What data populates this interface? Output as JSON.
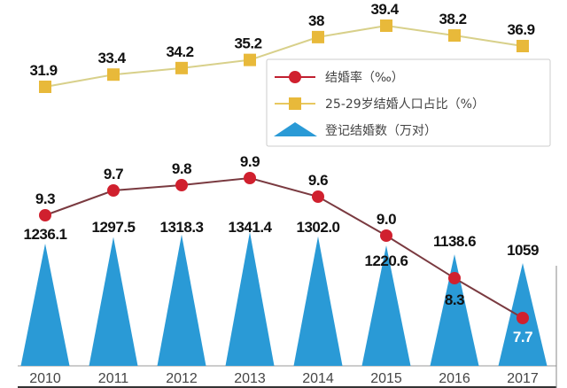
{
  "chart_data": {
    "type": "combo",
    "title": "",
    "categories": [
      "2010",
      "2011",
      "2012",
      "2013",
      "2014",
      "2015",
      "2016",
      "2017"
    ],
    "series": [
      {
        "name": "结婚率（‰）",
        "type": "line",
        "marker": "circle",
        "color": "#d0202e",
        "line_color": "#7a3a40",
        "values": [
          9.3,
          9.7,
          9.8,
          9.9,
          9.6,
          9.0,
          8.3,
          7.7
        ],
        "labels": [
          "9.3",
          "9.7",
          "9.8",
          "9.9",
          "9.6",
          "9.0",
          "8.3",
          "7.7"
        ]
      },
      {
        "name": "25-29岁结婚人口占比（%）",
        "type": "line",
        "marker": "square",
        "color": "#e8b93a",
        "line_color": "#d8d08a",
        "values": [
          31.9,
          33.4,
          34.2,
          35.2,
          38,
          39.4,
          38.2,
          36.9
        ],
        "labels": [
          "31.9",
          "33.4",
          "34.2",
          "35.2",
          "38",
          "39.4",
          "38.2",
          "36.9"
        ]
      },
      {
        "name": "登记结婚数（万对）",
        "type": "bar",
        "shape": "triangle",
        "color": "#2a9ad6",
        "values": [
          1236.1,
          1297.5,
          1318.3,
          1341.4,
          1302.0,
          1220.6,
          1138.6,
          1059
        ],
        "labels": [
          "1236.1",
          "1297.5",
          "1318.3",
          "1341.4",
          "1302.0",
          "1220.6",
          "1138.6",
          "1059"
        ]
      }
    ],
    "legend": {
      "position": "upper-right-center",
      "entries": [
        "结婚率（‰）",
        "25-29岁结婚人口占比（%）",
        "登记结婚数（万对）"
      ]
    },
    "xlabel": "",
    "ylabel": "",
    "grid": false
  },
  "legend": {
    "rate": "结婚率（‰）",
    "share": "25-29岁结婚人口占比（%）",
    "count": "登记结婚数（万对）"
  },
  "colors": {
    "rate_marker": "#d0202e",
    "rate_line": "#7a3a40",
    "share_marker": "#e8b93a",
    "share_line": "#d8d08a",
    "triangle": "#2a9ad6",
    "axis": "#bbbbbb"
  }
}
